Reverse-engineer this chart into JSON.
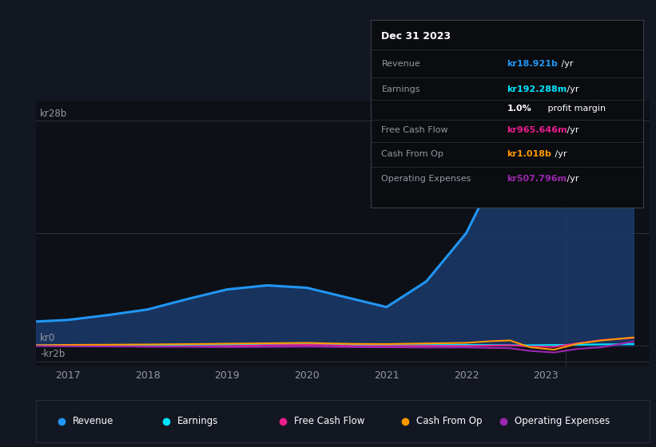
{
  "bg_color": "#131722",
  "plot_bg_color": "#0d1117",
  "grid_color": "#2a2e39",
  "text_color": "#9598a1",
  "revenue_color": "#2196f3",
  "revenue_fill": "#1a3a6b",
  "earnings_color": "#00e5ff",
  "fcf_color": "#e91e8c",
  "cashfromop_color": "#ff9800",
  "opex_color": "#9c27b0",
  "ylabel_top": "kr28b",
  "ylabel_mid": "kr0",
  "ylabel_bot": "-kr2b",
  "xlabels": [
    "2017",
    "2018",
    "2019",
    "2020",
    "2021",
    "2022",
    "2023"
  ],
  "legend": [
    {
      "label": "Revenue",
      "color": "#2196f3"
    },
    {
      "label": "Earnings",
      "color": "#00e5ff"
    },
    {
      "label": "Free Cash Flow",
      "color": "#e91e8c"
    },
    {
      "label": "Cash From Op",
      "color": "#ff9800"
    },
    {
      "label": "Operating Expenses",
      "color": "#9c27b0"
    }
  ]
}
